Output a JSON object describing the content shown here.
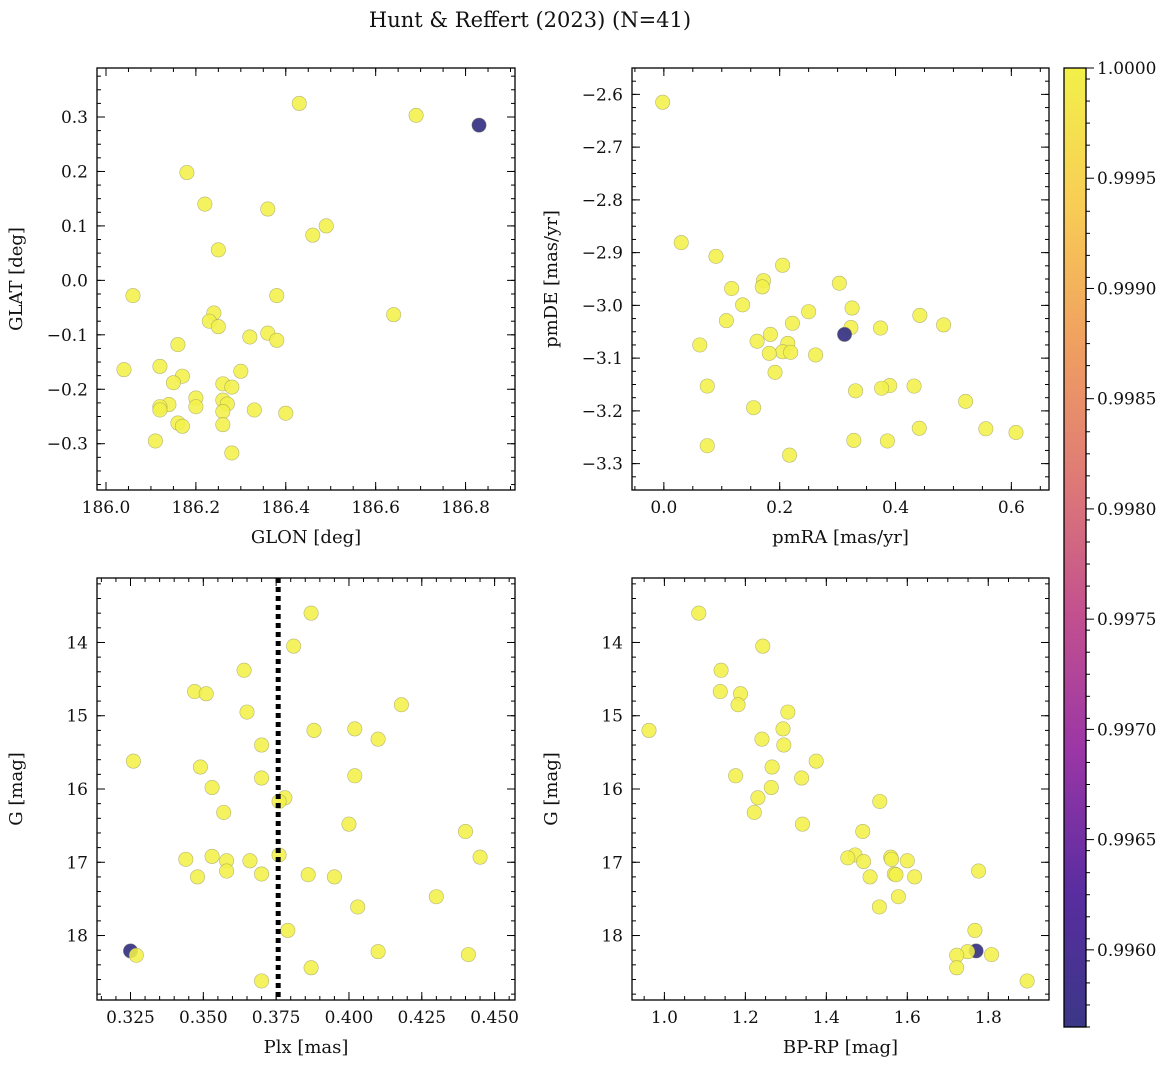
{
  "figure": {
    "title": "Hunt & Reffert (2023) (N=41)"
  },
  "colorbar": {
    "min": 0.99565,
    "max": 1.0,
    "ticks": [
      0.996,
      0.9965,
      0.997,
      0.9975,
      0.998,
      0.9985,
      0.999,
      0.9995,
      1.0
    ],
    "tick_labels": [
      "0.9960",
      "0.9965",
      "0.9970",
      "0.9975",
      "0.9980",
      "0.9985",
      "0.9990",
      "0.9995",
      "1.0000"
    ],
    "colormap": [
      "#3b3787",
      "#5a2da0",
      "#9a36a6",
      "#c2508f",
      "#de7a76",
      "#f0a060",
      "#f8cd55",
      "#f2f049"
    ]
  },
  "colors": {
    "member": "#f2f049",
    "outlier": "#3d3a8f"
  },
  "chart_data": [
    {
      "type": "scatter",
      "id": "glon-glat",
      "xlabel": "GLON [deg]",
      "ylabel": "GLAT [deg]",
      "xlim": [
        185.98,
        186.91
      ],
      "ylim": [
        -0.385,
        0.39
      ],
      "xticks": [
        186.0,
        186.2,
        186.4,
        186.6,
        186.8
      ],
      "xtick_labels": [
        "186.0",
        "186.2",
        "186.4",
        "186.6",
        "186.8"
      ],
      "yticks": [
        -0.3,
        -0.2,
        -0.1,
        0.0,
        0.1,
        0.2,
        0.3
      ],
      "ytick_labels": [
        "−0.3",
        "−0.2",
        "−0.1",
        "0.0",
        "0.1",
        "0.2",
        "0.3"
      ],
      "x_minor": 0.05,
      "y_minor": 0.025,
      "points": [
        [
          186.43,
          0.325,
          1
        ],
        [
          186.69,
          0.303,
          1
        ],
        [
          186.83,
          0.285,
          0.99565
        ],
        [
          186.18,
          0.198,
          1
        ],
        [
          186.22,
          0.14,
          1
        ],
        [
          186.36,
          0.131,
          1
        ],
        [
          186.49,
          0.1,
          1
        ],
        [
          186.46,
          0.083,
          1
        ],
        [
          186.25,
          0.056,
          1
        ],
        [
          186.06,
          -0.028,
          1
        ],
        [
          186.38,
          -0.028,
          1
        ],
        [
          186.64,
          -0.063,
          1
        ],
        [
          186.24,
          -0.06,
          1
        ],
        [
          186.23,
          -0.075,
          1
        ],
        [
          186.25,
          -0.085,
          1
        ],
        [
          186.36,
          -0.097,
          1
        ],
        [
          186.32,
          -0.104,
          1
        ],
        [
          186.38,
          -0.11,
          1
        ],
        [
          186.16,
          -0.118,
          1
        ],
        [
          186.04,
          -0.164,
          1
        ],
        [
          186.12,
          -0.158,
          1
        ],
        [
          186.3,
          -0.167,
          1
        ],
        [
          186.17,
          -0.176,
          1
        ],
        [
          186.15,
          -0.188,
          1
        ],
        [
          186.26,
          -0.19,
          1
        ],
        [
          186.28,
          -0.196,
          1
        ],
        [
          186.2,
          -0.216,
          1
        ],
        [
          186.26,
          -0.22,
          1
        ],
        [
          186.27,
          -0.227,
          1
        ],
        [
          186.14,
          -0.228,
          1
        ],
        [
          186.2,
          -0.232,
          1
        ],
        [
          186.12,
          -0.232,
          1
        ],
        [
          186.12,
          -0.238,
          1
        ],
        [
          186.26,
          -0.241,
          1
        ],
        [
          186.33,
          -0.238,
          1
        ],
        [
          186.4,
          -0.244,
          1
        ],
        [
          186.16,
          -0.262,
          1
        ],
        [
          186.17,
          -0.268,
          1
        ],
        [
          186.26,
          -0.265,
          1
        ],
        [
          186.11,
          -0.295,
          1
        ],
        [
          186.28,
          -0.317,
          1
        ]
      ]
    },
    {
      "type": "scatter",
      "id": "pmra-pmde",
      "xlabel": "pmRA [mas/yr]",
      "ylabel": "pmDE [mas/yr]",
      "xlim": [
        -0.055,
        0.665
      ],
      "ylim": [
        -3.35,
        -2.55
      ],
      "xticks": [
        0.0,
        0.2,
        0.4,
        0.6
      ],
      "xtick_labels": [
        "0.0",
        "0.2",
        "0.4",
        "0.6"
      ],
      "yticks": [
        -3.3,
        -3.2,
        -3.1,
        -3.0,
        -2.9,
        -2.8,
        -2.7,
        -2.6
      ],
      "ytick_labels": [
        "−3.3",
        "−3.2",
        "−3.1",
        "−3.0",
        "−2.9",
        "−2.8",
        "−2.7",
        "−2.6"
      ],
      "x_minor": 0.05,
      "y_minor": 0.025,
      "points": [
        [
          -0.002,
          -2.615,
          1
        ],
        [
          0.03,
          -2.881,
          1
        ],
        [
          0.09,
          -2.907,
          1
        ],
        [
          0.205,
          -2.924,
          1
        ],
        [
          0.172,
          -2.953,
          1
        ],
        [
          0.303,
          -2.958,
          1
        ],
        [
          0.117,
          -2.968,
          1
        ],
        [
          0.17,
          -2.965,
          1
        ],
        [
          0.136,
          -2.999,
          1
        ],
        [
          0.325,
          -3.005,
          1
        ],
        [
          0.25,
          -3.012,
          1
        ],
        [
          0.442,
          -3.019,
          1
        ],
        [
          0.108,
          -3.029,
          1
        ],
        [
          0.222,
          -3.034,
          1
        ],
        [
          0.483,
          -3.037,
          1
        ],
        [
          0.374,
          -3.043,
          1
        ],
        [
          0.323,
          -3.042,
          1
        ],
        [
          0.312,
          -3.055,
          0.99565
        ],
        [
          0.184,
          -3.055,
          1
        ],
        [
          0.062,
          -3.075,
          1
        ],
        [
          0.161,
          -3.068,
          1
        ],
        [
          0.214,
          -3.072,
          1
        ],
        [
          0.205,
          -3.088,
          1
        ],
        [
          0.219,
          -3.089,
          1
        ],
        [
          0.182,
          -3.091,
          1
        ],
        [
          0.262,
          -3.094,
          1
        ],
        [
          0.192,
          -3.127,
          1
        ],
        [
          0.075,
          -3.153,
          1
        ],
        [
          0.39,
          -3.152,
          1
        ],
        [
          0.432,
          -3.153,
          1
        ],
        [
          0.376,
          -3.157,
          1
        ],
        [
          0.331,
          -3.162,
          1
        ],
        [
          0.521,
          -3.182,
          1
        ],
        [
          0.155,
          -3.194,
          1
        ],
        [
          0.441,
          -3.233,
          1
        ],
        [
          0.556,
          -3.234,
          1
        ],
        [
          0.608,
          -3.241,
          1
        ],
        [
          0.328,
          -3.256,
          1
        ],
        [
          0.386,
          -3.257,
          1
        ],
        [
          0.075,
          -3.266,
          1
        ],
        [
          0.217,
          -3.284,
          1
        ]
      ]
    },
    {
      "type": "scatter",
      "id": "plx-g",
      "xlabel": "Plx [mas]",
      "ylabel": "G [mag]",
      "xlim": [
        0.3135,
        0.457
      ],
      "ylim": [
        18.88,
        13.12
      ],
      "xticks": [
        0.325,
        0.35,
        0.375,
        0.4,
        0.425,
        0.45
      ],
      "xtick_labels": [
        "0.325",
        "0.350",
        "0.375",
        "0.400",
        "0.425",
        "0.450"
      ],
      "yticks": [
        14,
        15,
        16,
        17,
        18
      ],
      "ytick_labels": [
        "14",
        "15",
        "16",
        "17",
        "18"
      ],
      "x_minor": 0.005,
      "y_minor": 0.2,
      "vline": {
        "x": 0.3757,
        "style": "dotted",
        "color": "#000000"
      },
      "points": [
        [
          0.387,
          13.6,
          1
        ],
        [
          0.381,
          14.05,
          1
        ],
        [
          0.364,
          14.38,
          1
        ],
        [
          0.347,
          14.67,
          1
        ],
        [
          0.351,
          14.7,
          1
        ],
        [
          0.418,
          14.85,
          1
        ],
        [
          0.365,
          14.95,
          1
        ],
        [
          0.388,
          15.2,
          1
        ],
        [
          0.402,
          15.18,
          1
        ],
        [
          0.41,
          15.32,
          1
        ],
        [
          0.37,
          15.4,
          1
        ],
        [
          0.326,
          15.62,
          1
        ],
        [
          0.349,
          15.7,
          1
        ],
        [
          0.402,
          15.82,
          1
        ],
        [
          0.37,
          15.85,
          1
        ],
        [
          0.353,
          15.98,
          1
        ],
        [
          0.378,
          16.12,
          1
        ],
        [
          0.376,
          16.17,
          1
        ],
        [
          0.357,
          16.32,
          1
        ],
        [
          0.4,
          16.48,
          1
        ],
        [
          0.44,
          16.58,
          1
        ],
        [
          0.376,
          16.9,
          1
        ],
        [
          0.344,
          16.96,
          1
        ],
        [
          0.353,
          16.92,
          1
        ],
        [
          0.358,
          16.98,
          1
        ],
        [
          0.366,
          16.98,
          1
        ],
        [
          0.445,
          16.93,
          1
        ],
        [
          0.358,
          17.12,
          1
        ],
        [
          0.37,
          17.16,
          1
        ],
        [
          0.348,
          17.2,
          1
        ],
        [
          0.386,
          17.17,
          1
        ],
        [
          0.395,
          17.2,
          1
        ],
        [
          0.43,
          17.47,
          1
        ],
        [
          0.403,
          17.61,
          1
        ],
        [
          0.379,
          17.93,
          1
        ],
        [
          0.325,
          18.21,
          0.99565
        ],
        [
          0.327,
          18.27,
          1
        ],
        [
          0.41,
          18.22,
          1
        ],
        [
          0.441,
          18.26,
          1
        ],
        [
          0.387,
          18.44,
          1
        ],
        [
          0.37,
          18.62,
          1
        ]
      ]
    },
    {
      "type": "scatter",
      "id": "bprp-g",
      "xlabel": "BP-RP [mag]",
      "ylabel": "G [mag]",
      "xlim": [
        0.92,
        1.95
      ],
      "ylim": [
        18.88,
        13.12
      ],
      "xticks": [
        1.0,
        1.2,
        1.4,
        1.6,
        1.8
      ],
      "xtick_labels": [
        "1.0",
        "1.2",
        "1.4",
        "1.6",
        "1.8"
      ],
      "yticks": [
        14,
        15,
        16,
        17,
        18
      ],
      "ytick_labels": [
        "14",
        "15",
        "16",
        "17",
        "18"
      ],
      "x_minor": 0.05,
      "y_minor": 0.2,
      "points": [
        [
          1.085,
          13.6,
          1
        ],
        [
          1.243,
          14.05,
          1
        ],
        [
          1.14,
          14.38,
          1
        ],
        [
          1.138,
          14.67,
          1
        ],
        [
          1.188,
          14.7,
          1
        ],
        [
          1.182,
          14.85,
          1
        ],
        [
          1.305,
          14.95,
          1
        ],
        [
          0.962,
          15.2,
          1
        ],
        [
          1.293,
          15.18,
          1
        ],
        [
          1.241,
          15.32,
          1
        ],
        [
          1.295,
          15.4,
          1
        ],
        [
          1.375,
          15.62,
          1
        ],
        [
          1.266,
          15.7,
          1
        ],
        [
          1.176,
          15.82,
          1
        ],
        [
          1.339,
          15.85,
          1
        ],
        [
          1.264,
          15.98,
          1
        ],
        [
          1.231,
          16.12,
          1
        ],
        [
          1.532,
          16.17,
          1
        ],
        [
          1.222,
          16.32,
          1
        ],
        [
          1.341,
          16.48,
          1
        ],
        [
          1.49,
          16.58,
          1
        ],
        [
          1.471,
          16.9,
          1
        ],
        [
          1.453,
          16.94,
          1
        ],
        [
          1.559,
          16.93,
          1
        ],
        [
          1.561,
          16.96,
          1
        ],
        [
          1.492,
          16.99,
          1
        ],
        [
          1.6,
          16.98,
          1
        ],
        [
          1.776,
          17.12,
          1
        ],
        [
          1.568,
          17.16,
          1
        ],
        [
          1.508,
          17.2,
          1
        ],
        [
          1.618,
          17.2,
          1
        ],
        [
          1.572,
          17.17,
          1
        ],
        [
          1.578,
          17.47,
          1
        ],
        [
          1.531,
          17.61,
          1
        ],
        [
          1.767,
          17.93,
          1
        ],
        [
          1.77,
          18.21,
          0.99565
        ],
        [
          1.749,
          18.22,
          1
        ],
        [
          1.722,
          18.27,
          1
        ],
        [
          1.808,
          18.26,
          1
        ],
        [
          1.722,
          18.44,
          1
        ],
        [
          1.896,
          18.62,
          1
        ]
      ]
    }
  ]
}
